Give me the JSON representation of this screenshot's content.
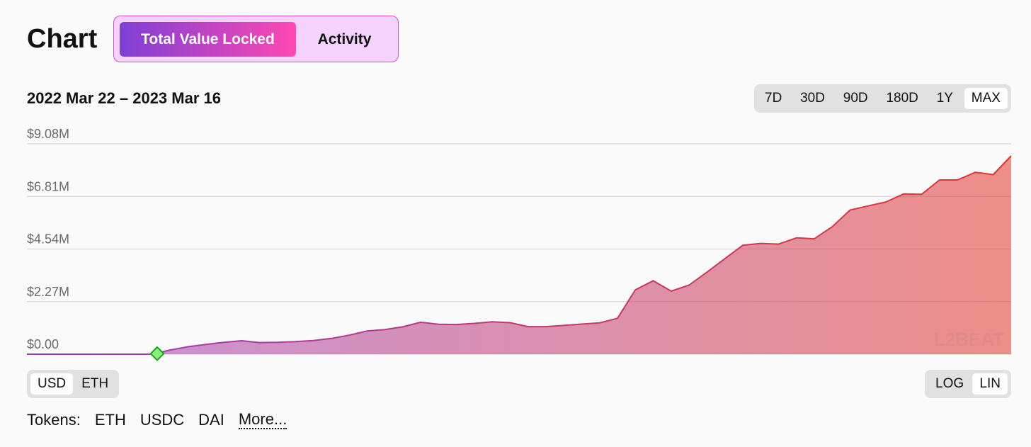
{
  "header": {
    "title": "Chart",
    "tabs": [
      "Total Value Locked",
      "Activity"
    ],
    "active_tab": 0
  },
  "date_range": "2022 Mar 22 – 2023 Mar 16",
  "ranges": [
    "7D",
    "30D",
    "90D",
    "180D",
    "1Y",
    "MAX"
  ],
  "active_range": 5,
  "chart_data": {
    "type": "area",
    "values": [
      0,
      0,
      0,
      0,
      0,
      0,
      0,
      0,
      0.18,
      0.32,
      0.42,
      0.51,
      0.58,
      0.5,
      0.51,
      0.54,
      0.59,
      0.68,
      0.82,
      1.0,
      1.06,
      1.18,
      1.38,
      1.29,
      1.28,
      1.33,
      1.4,
      1.36,
      1.19,
      1.19,
      1.24,
      1.3,
      1.35,
      1.55,
      2.78,
      3.17,
      2.72,
      2.98,
      3.54,
      4.12,
      4.7,
      4.78,
      4.75,
      5.02,
      4.98,
      5.5,
      6.22,
      6.4,
      6.57,
      6.92,
      6.9,
      7.52,
      7.52,
      7.85,
      7.75,
      8.56
    ],
    "colors": [
      "#9a3cc0",
      "#e2372c"
    ],
    "ylim": [
      0,
      9.08
    ],
    "yticks": [
      {
        "value": 0,
        "label": "$0.00"
      },
      {
        "value": 2.27,
        "label": "$2.27M"
      },
      {
        "value": 4.54,
        "label": "$4.54M"
      },
      {
        "value": 6.81,
        "label": "$6.81M"
      },
      {
        "value": 9.08,
        "label": "$9.08M"
      }
    ],
    "grid": true,
    "watermark": "L2BEAT"
  },
  "units": [
    "USD",
    "ETH"
  ],
  "active_unit": 0,
  "scales": [
    "LOG",
    "LIN"
  ],
  "active_scale": 1,
  "tokens": {
    "label": "Tokens:",
    "items": [
      "ETH",
      "USDC",
      "DAI"
    ],
    "more": "More..."
  }
}
